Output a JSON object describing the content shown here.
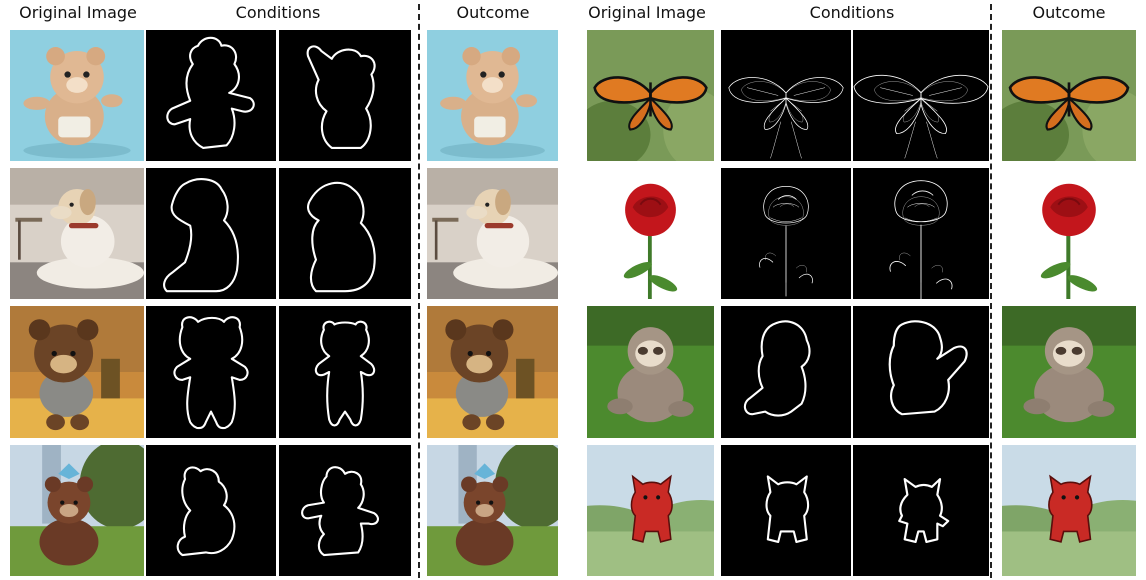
{
  "headers": {
    "left": {
      "original": "Original Image",
      "conditions": "Conditions",
      "outcome": "Outcome"
    },
    "right": {
      "original": "Original Image",
      "conditions": "Conditions",
      "outcome": "Outcome"
    }
  },
  "left_rows": [
    {
      "subject": "teddy-bear",
      "bg": "#8fcfe0"
    },
    {
      "subject": "dog",
      "bg": "#c8bdb1"
    },
    {
      "subject": "brown-bear",
      "bg": "#c98a3c"
    },
    {
      "subject": "teddy-park",
      "bg": "#8aa86a"
    }
  ],
  "right_rows": [
    {
      "subject": "butterfly",
      "bg": "#7a9a58"
    },
    {
      "subject": "rose",
      "bg": "#ffffff"
    },
    {
      "subject": "sloth",
      "bg": "#5e9a3c"
    },
    {
      "subject": "red-creature",
      "bg": "#9fbf83"
    }
  ],
  "colors": {
    "condition_bg": "#000000",
    "condition_line": "#ffffff",
    "divider": "#222222"
  }
}
